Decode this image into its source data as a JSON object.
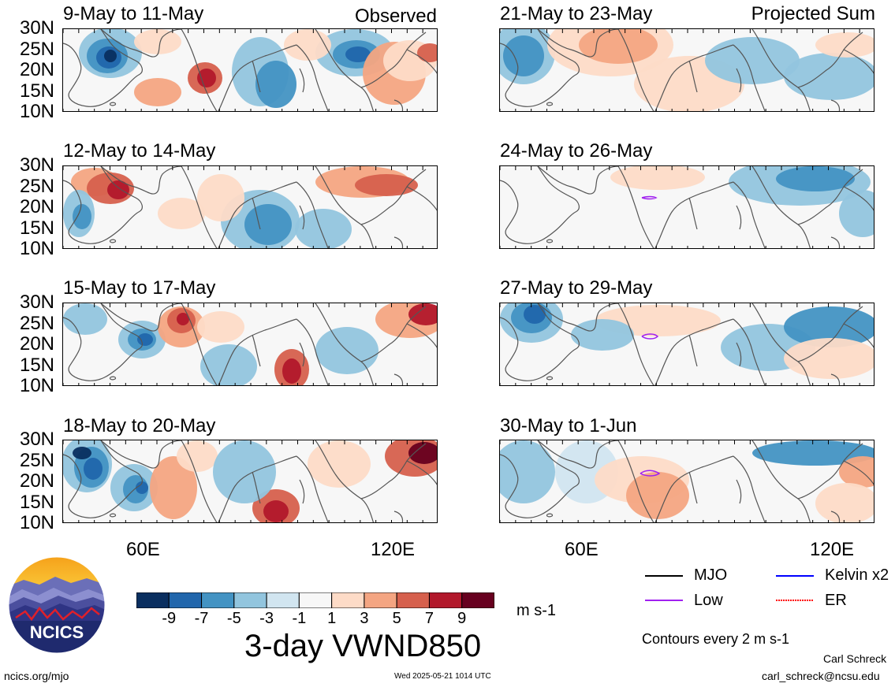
{
  "left_column_tag": "Observed",
  "right_column_tag": "Projected Sum",
  "lat_labels": [
    "30N",
    "25N",
    "20N",
    "15N",
    "10N"
  ],
  "lon_labels": [
    "60E",
    "120E"
  ],
  "panels_left": [
    {
      "title": "9-May to 11-May"
    },
    {
      "title": "12-May to 14-May"
    },
    {
      "title": "15-May to 17-May"
    },
    {
      "title": "18-May to 20-May"
    }
  ],
  "panels_right": [
    {
      "title": "21-May to 23-May"
    },
    {
      "title": "24-May to 26-May"
    },
    {
      "title": "27-May to 29-May"
    },
    {
      "title": "30-May to 1-Jun"
    }
  ],
  "colorbar": {
    "labels": [
      "-9",
      "-7",
      "-5",
      "-3",
      "-1",
      "1",
      "3",
      "5",
      "7",
      "9"
    ],
    "colors": [
      "#0a2f60",
      "#2166ac",
      "#4393c3",
      "#92c5de",
      "#d1e5f0",
      "#f7f7f7",
      "#fddbc7",
      "#f4a582",
      "#d6604d",
      "#b2182b",
      "#67001f"
    ],
    "units": "m s-1"
  },
  "main_title": "3-day VWND850",
  "legend": {
    "mjo": "MJO",
    "low": "Low",
    "kelvin": "Kelvin x2",
    "er": "ER",
    "colors": {
      "mjo": "#000000",
      "low": "#a020f0",
      "kelvin": "#0000ff",
      "er": "#ff0000"
    },
    "contours_note": "Contours every 2 m s-1"
  },
  "logo_text": "NCICS",
  "footer": {
    "url": "ncics.org/mjo",
    "timestamp": "Wed 2025-05-21 1014 UTC",
    "author": "Carl Schreck",
    "email": "carl_schreck@ncsu.edu"
  }
}
